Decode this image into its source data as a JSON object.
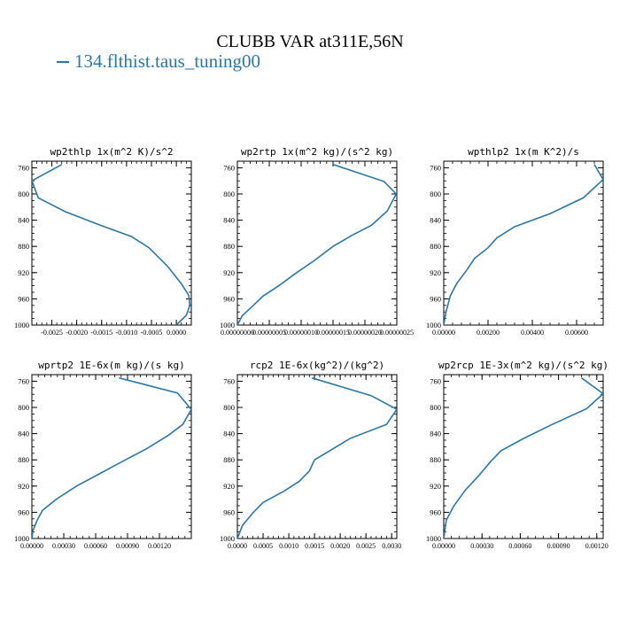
{
  "figure": {
    "title": "CLUBB VAR at311E,56N",
    "legend_label": "134.flthist.taus_tuning00",
    "line_color": "#2a77ad"
  },
  "chart_data": [
    {
      "type": "line",
      "title": "wp2thlp  1x(m^2 K)/s^2",
      "xlim": [
        -0.0029,
        0.0003
      ],
      "ylim": [
        1000,
        750
      ],
      "xticks": [
        -0.0025,
        -0.002,
        -0.0015,
        -0.001,
        -0.0005,
        0.0
      ],
      "xtick_labels": [
        "-0.0025",
        "-0.0020",
        "-0.0015",
        "-0.0010",
        "-0.0005",
        "0.0000"
      ],
      "yticks": [
        760,
        800,
        840,
        880,
        920,
        960,
        1000
      ],
      "x": [
        -0.0023,
        -0.0029,
        -0.00277,
        -0.00223,
        -0.00155,
        -0.0009,
        -0.00055,
        -0.00018,
        0.0001,
        0.00025,
        0.00027,
        0.0002,
        0.0
      ],
      "y": [
        755,
        780,
        806,
        827,
        847,
        865,
        882,
        910,
        937,
        955,
        970,
        985,
        1000
      ]
    },
    {
      "type": "line",
      "title": "wp2rtp  1x(m^2 kg)/(s^2 kg)",
      "xlim": [
        0,
        2.5e-07
      ],
      "ylim": [
        1000,
        750
      ],
      "xticks": [
        0,
        5e-08,
        1e-07,
        1.5e-07,
        2e-07,
        2.5e-07
      ],
      "xtick_labels": [
        "0.00000000",
        "0.00000005",
        "0.00000010",
        "0.00000015",
        "0.00000020",
        "0.00000025"
      ],
      "yticks": [
        760,
        800,
        840,
        880,
        920,
        960,
        1000
      ],
      "x": [
        1.5e-07,
        2.3e-07,
        2.49e-07,
        2.35e-07,
        2.1e-07,
        1.8e-07,
        1.5e-07,
        1.2e-07,
        9e-08,
        6.5e-08,
        4e-08,
        2.5e-08,
        7.5e-09,
        0.0
      ],
      "y": [
        755,
        781,
        800,
        826,
        848,
        863,
        880,
        902,
        922,
        940,
        956,
        970,
        986,
        1000
      ]
    },
    {
      "type": "line",
      "title": "wpthlp2  1x(m K^2)/s",
      "xlim": [
        0,
        0.0072
      ],
      "ylim": [
        1000,
        750
      ],
      "xticks": [
        0,
        0.002,
        0.004,
        0.006
      ],
      "xtick_labels": [
        "0.00000",
        "0.00200",
        "0.00400",
        "0.00600"
      ],
      "yticks": [
        760,
        800,
        840,
        880,
        920,
        960,
        1000
      ],
      "x": [
        0.0068,
        0.0072,
        0.0063,
        0.0048,
        0.0032,
        0.0024,
        0.002,
        0.0014,
        0.001,
        0.0006,
        0.0003,
        0.0001,
        0.0
      ],
      "y": [
        755,
        778,
        806,
        830,
        850,
        867,
        882,
        898,
        918,
        936,
        955,
        980,
        1000
      ]
    },
    {
      "type": "line",
      "title": "wprtp2  1E-6x(m kg)/(s kg)",
      "xlim": [
        0,
        0.0015
      ],
      "ylim": [
        1000,
        750
      ],
      "xticks": [
        0,
        0.0003,
        0.0006,
        0.0009,
        0.0012
      ],
      "xtick_labels": [
        "0.00000",
        "0.00030",
        "0.00060",
        "0.00090",
        "0.00120"
      ],
      "yticks": [
        760,
        800,
        840,
        880,
        920,
        960,
        1000
      ],
      "x": [
        0.00082,
        0.00137,
        0.0015,
        0.00142,
        0.00128,
        0.00108,
        0.00088,
        0.00065,
        0.00042,
        0.00023,
        0.0001,
        5e-05,
        1e-05,
        0.0
      ],
      "y": [
        755,
        778,
        803,
        826,
        843,
        863,
        880,
        900,
        920,
        940,
        957,
        972,
        988,
        1000
      ]
    },
    {
      "type": "line",
      "title": "rcp2  1E-6x(kg^2)/(kg^2)",
      "xlim": [
        0,
        0.0031
      ],
      "ylim": [
        1000,
        750
      ],
      "xticks": [
        0,
        0.0005,
        0.001,
        0.0015,
        0.002,
        0.0025,
        0.003
      ],
      "xtick_labels": [
        "0.0000",
        "0.0005",
        "0.0010",
        "0.0015",
        "0.0020",
        "0.0025",
        "0.0030"
      ],
      "yticks": [
        760,
        800,
        840,
        880,
        920,
        960,
        1000
      ],
      "x": [
        0.00145,
        0.0026,
        0.0031,
        0.0029,
        0.0022,
        0.0018,
        0.0015,
        0.0014,
        0.0012,
        0.0009,
        0.0005,
        0.0003,
        0.0001,
        0.0
      ],
      "y": [
        755,
        782,
        803,
        826,
        847,
        866,
        880,
        897,
        913,
        928,
        945,
        961,
        980,
        1000
      ]
    },
    {
      "type": "line",
      "title": "wp2rcp  1E-3x(m^2 kg)/(s^2 kg)",
      "xlim": [
        0,
        0.00125
      ],
      "ylim": [
        1000,
        750
      ],
      "xticks": [
        0,
        0.0003,
        0.0006,
        0.0009,
        0.0012
      ],
      "xtick_labels": [
        "0.00000",
        "0.00030",
        "0.00060",
        "0.00090",
        "0.00120"
      ],
      "yticks": [
        760,
        800,
        840,
        880,
        920,
        960,
        1000
      ],
      "x": [
        0.00108,
        0.00125,
        0.00112,
        0.00085,
        0.00062,
        0.00045,
        0.00037,
        0.00028,
        0.00017,
        8e-05,
        2e-05,
        0.0
      ],
      "y": [
        755,
        779,
        802,
        826,
        848,
        866,
        882,
        903,
        926,
        950,
        972,
        1000
      ]
    }
  ]
}
